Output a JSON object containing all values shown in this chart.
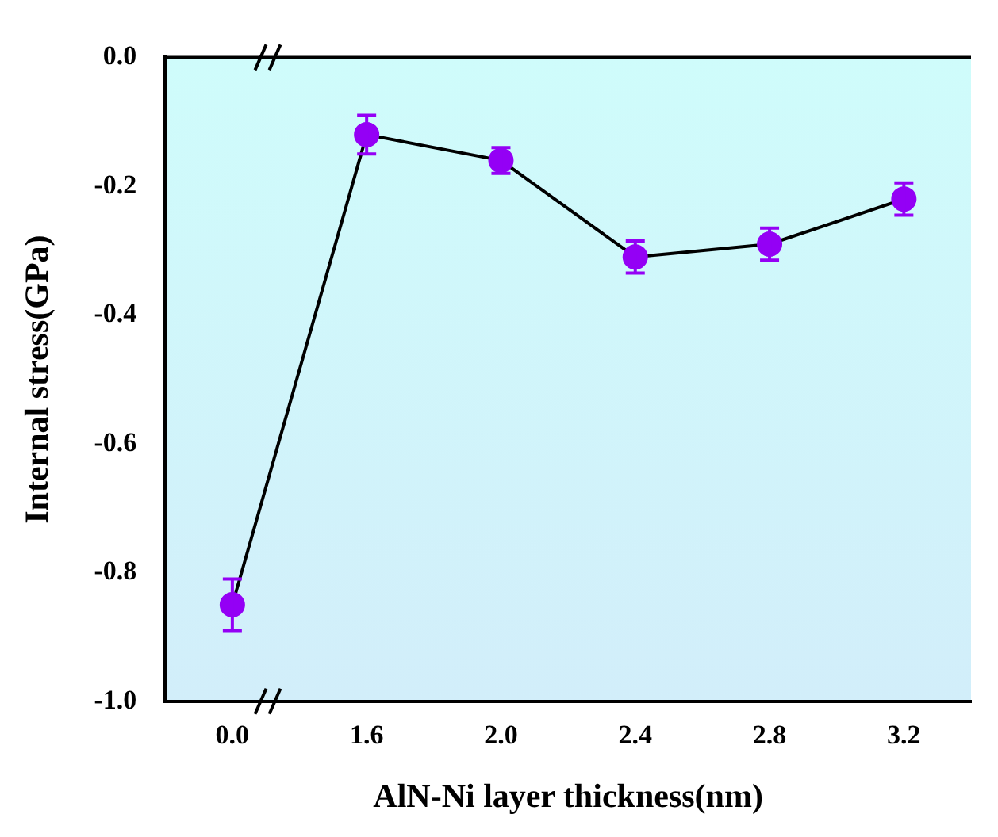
{
  "chart_data": {
    "type": "line",
    "xlabel": "AlN-Ni layer thickness(nm)",
    "ylabel": "Internal stress(GPa)",
    "categories": [
      "0.0",
      "1.6",
      "2.0",
      "2.4",
      "2.8",
      "3.2"
    ],
    "series": [
      {
        "color": "#9400f5",
        "values": [
          -0.85,
          -0.12,
          -0.16,
          -0.31,
          -0.29,
          -0.22
        ],
        "errors": [
          0.04,
          0.03,
          0.02,
          0.025,
          0.025,
          0.025
        ]
      }
    ],
    "ylim": [
      -1.0,
      0.0
    ],
    "yticks": [
      {
        "value": 0,
        "label": "0.0"
      },
      -0.2,
      -0.4,
      -0.6,
      -0.8,
      {
        "value": -1,
        "label": "-1.0"
      }
    ],
    "grid": false,
    "legend": false,
    "marker": "circle",
    "line_style": "solid"
  }
}
